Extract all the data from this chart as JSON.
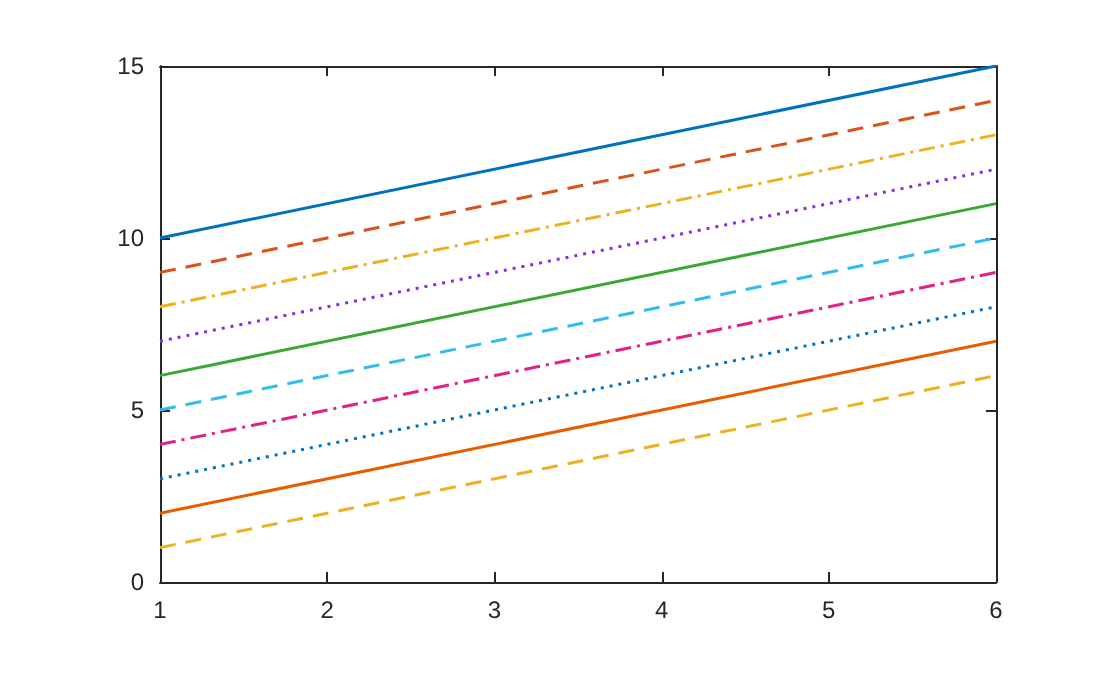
{
  "chart_data": {
    "type": "line",
    "x": [
      1,
      6
    ],
    "xlim": [
      1,
      6
    ],
    "xticks": [
      1,
      2,
      3,
      4,
      5,
      6
    ],
    "ylim": [
      0,
      15
    ],
    "yticks": [
      0,
      5,
      10,
      15
    ],
    "grid": false,
    "marker": "none",
    "series": [
      {
        "color": "#0072bd",
        "line_style": "solid",
        "values": [
          10,
          15
        ]
      },
      {
        "color": "#d95319",
        "line_style": "dashed",
        "values": [
          9,
          14
        ]
      },
      {
        "color": "#edb120",
        "line_style": "dashdot",
        "values": [
          8,
          13
        ]
      },
      {
        "color": "#8a2be2",
        "line_style": "dotted",
        "values": [
          7,
          12
        ]
      },
      {
        "color": "#3aa832",
        "line_style": "solid",
        "values": [
          6,
          11
        ]
      },
      {
        "color": "#30bdee",
        "line_style": "dashed",
        "values": [
          5,
          10
        ]
      },
      {
        "color": "#e0218a",
        "line_style": "dashdot",
        "values": [
          4,
          9
        ]
      },
      {
        "color": "#0072bd",
        "line_style": "dotted",
        "values": [
          3,
          8
        ]
      },
      {
        "color": "#e65c00",
        "line_style": "solid",
        "values": [
          2,
          7
        ]
      },
      {
        "color": "#edb120",
        "line_style": "dashed",
        "values": [
          1,
          6
        ]
      }
    ]
  }
}
